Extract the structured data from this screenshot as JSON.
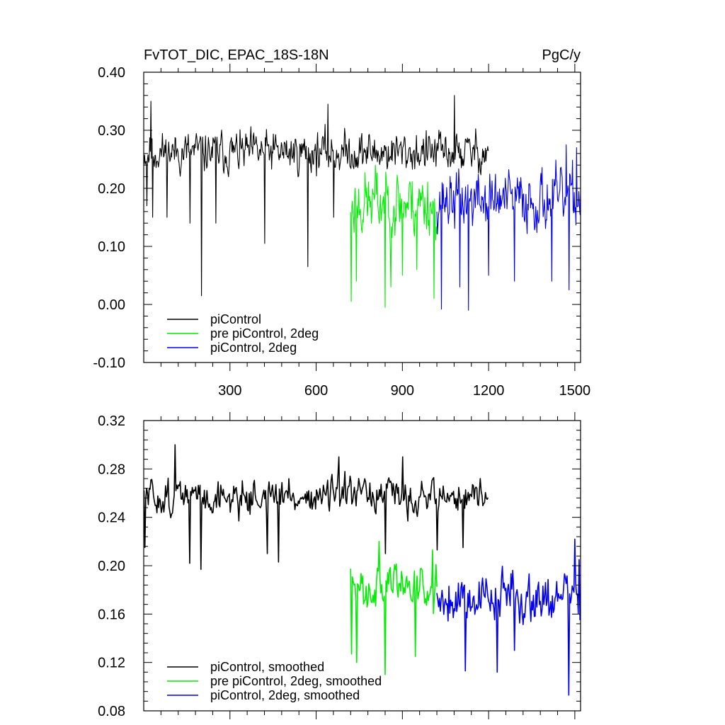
{
  "chart_data": [
    {
      "type": "line",
      "title": "FvTOT_DIC, EPAC_18S-18N",
      "units": "PgC/y",
      "xlabel": "",
      "ylabel": "",
      "xlim": [
        0,
        1520
      ],
      "ylim": [
        -0.1,
        0.4
      ],
      "xticks": [
        300,
        600,
        900,
        1200,
        1500
      ],
      "xtick_labels": [
        "300",
        "600",
        "900",
        "1200",
        "1500"
      ],
      "yticks": [
        -0.1,
        0.0,
        0.1,
        0.2,
        0.3,
        0.4
      ],
      "ytick_labels": [
        "-0.10",
        "0.00",
        "0.10",
        "0.20",
        "0.30",
        "0.40"
      ],
      "legend": "bottom-left",
      "series": [
        {
          "name": "piControl",
          "color": "#000000",
          "x_range": [
            1,
            1200
          ],
          "baseline": 0.262,
          "noise": 0.028,
          "step": 2,
          "seed": 11,
          "spikes": [
            [
              10,
              0.17
            ],
            [
              30,
              0.15
            ],
            [
              80,
              0.15
            ],
            [
              160,
              0.14
            ],
            [
              200,
              0.015
            ],
            [
              250,
              0.14
            ],
            [
              420,
              0.105
            ],
            [
              570,
              0.065
            ],
            [
              660,
              0.15
            ],
            [
              25,
              0.35
            ],
            [
              1080,
              0.36
            ],
            [
              640,
              0.345
            ]
          ]
        },
        {
          "name": "pre piControl, 2deg",
          "color": "#00ee00",
          "x_range": [
            720,
            1020
          ],
          "baseline": 0.175,
          "noise": 0.045,
          "step": 2,
          "seed": 23,
          "spikes": [
            [
              722,
              0.005
            ],
            [
              740,
              0.04
            ],
            [
              840,
              -0.005
            ],
            [
              1010,
              0.01
            ],
            [
              860,
              0.03
            ],
            [
              900,
              0.05
            ],
            [
              950,
              0.06
            ],
            [
              805,
              0.24
            ]
          ]
        },
        {
          "name": "piControl, 2deg",
          "color": "#0000ee",
          "x_range": [
            1020,
            1520
          ],
          "baseline": 0.18,
          "noise": 0.04,
          "step": 2,
          "seed": 37,
          "spikes": [
            [
              1035,
              -0.008
            ],
            [
              1130,
              -0.01
            ],
            [
              1100,
              0.03
            ],
            [
              1200,
              0.05
            ],
            [
              1290,
              0.04
            ],
            [
              1420,
              0.04
            ],
            [
              1480,
              0.025
            ],
            [
              1470,
              0.275
            ],
            [
              1505,
              0.27
            ]
          ]
        }
      ],
      "legend_entries": [
        "piControl",
        "pre piControl, 2deg",
        "piControl, 2deg"
      ]
    },
    {
      "type": "line",
      "title": "",
      "xlabel": "",
      "ylabel": "",
      "xlim": [
        0,
        1520
      ],
      "ylim": [
        0.08,
        0.32
      ],
      "xticks": [
        300,
        600,
        900,
        1200,
        1500
      ],
      "yticks": [
        0.08,
        0.12,
        0.16,
        0.2,
        0.24,
        0.28,
        0.32
      ],
      "ytick_labels": [
        "0.08",
        "0.12",
        "0.16",
        "0.20",
        "0.24",
        "0.28",
        "0.32"
      ],
      "legend": "bottom-left",
      "series": [
        {
          "name": "piControl, smoothed",
          "color": "#000000",
          "x_range": [
            1,
            1200
          ],
          "baseline": 0.257,
          "noise": 0.012,
          "step": 3,
          "seed": 51,
          "spikes": [
            [
              5,
              0.215
            ],
            [
              110,
              0.3
            ],
            [
              160,
              0.202
            ],
            [
              200,
              0.197
            ],
            [
              430,
              0.21
            ],
            [
              470,
              0.203
            ],
            [
              680,
              0.29
            ],
            [
              840,
              0.21
            ],
            [
              900,
              0.29
            ],
            [
              1020,
              0.213
            ],
            [
              1110,
              0.215
            ],
            [
              1200,
              0.21
            ]
          ]
        },
        {
          "name": "pre piControl, 2deg, smoothed",
          "color": "#00ee00",
          "x_range": [
            720,
            1020
          ],
          "baseline": 0.185,
          "noise": 0.016,
          "step": 3,
          "seed": 63,
          "spikes": [
            [
              722,
              0.127
            ],
            [
              740,
              0.12
            ],
            [
              820,
              0.22
            ],
            [
              840,
              0.11
            ],
            [
              945,
              0.125
            ],
            [
              1005,
              0.109
            ],
            [
              1005,
              0.213
            ]
          ]
        },
        {
          "name": "piControl, 2deg, smoothed",
          "color": "#0000ee",
          "x_range": [
            1020,
            1520
          ],
          "baseline": 0.175,
          "noise": 0.018,
          "step": 3,
          "seed": 79,
          "spikes": [
            [
              1120,
              0.113
            ],
            [
              1230,
              0.112
            ],
            [
              1290,
              0.13
            ],
            [
              1480,
              0.093
            ],
            [
              1500,
              0.222
            ],
            [
              1515,
              0.205
            ]
          ]
        }
      ],
      "legend_entries": [
        "piControl, smoothed",
        "pre piControl, 2deg, smoothed",
        "piControl, 2deg, smoothed"
      ]
    }
  ]
}
